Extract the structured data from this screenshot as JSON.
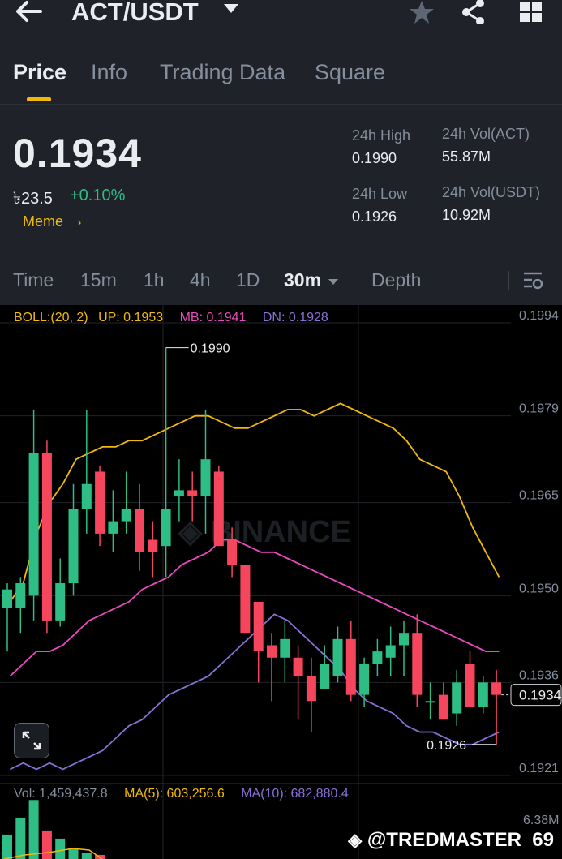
{
  "header": {
    "pair": "ACT/USDT"
  },
  "tabs": [
    {
      "label": "Price",
      "active": true
    },
    {
      "label": "Info",
      "active": false
    },
    {
      "label": "Trading Data",
      "active": false
    },
    {
      "label": "Square",
      "active": false
    }
  ],
  "ticker": {
    "last_price": "0.1934",
    "fiat_price": "৳23.5",
    "change": "+0.10%",
    "tag": "Meme",
    "high_label": "24h High",
    "high": "0.1990",
    "low_label": "24h Low",
    "low": "0.1926",
    "vol_base_label": "24h Vol(ACT)",
    "vol_base": "55.87M",
    "vol_quote_label": "24h Vol(USDT)",
    "vol_quote": "10.92M"
  },
  "timeframes": [
    "Time",
    "15m",
    "1h",
    "4h",
    "1D",
    "30m",
    "Depth"
  ],
  "selected_timeframe": "30m",
  "indicators": {
    "boll": "BOLL:(20, 2)",
    "up": "UP: 0.1953",
    "mb": "MB: 0.1941",
    "dn": "DN: 0.1928"
  },
  "volume_indicators": {
    "vol": "Vol: 1,459,437.8",
    "ma5": "MA(5): 603,256.6",
    "ma10": "MA(10): 682,880.4",
    "max": "6.38M"
  },
  "chart_data": {
    "type": "candlestick",
    "y_ticks": [
      "0.1994",
      "0.1979",
      "0.1965",
      "0.1950",
      "0.1936",
      "0.1921"
    ],
    "ylim": [
      0.1921,
      0.1994
    ],
    "current_price_label": "0.1934",
    "high_marker": "0.1990",
    "low_marker": "0.1926",
    "candles": [
      {
        "o": 0.1948,
        "h": 0.1952,
        "l": 0.1941,
        "c": 0.1951
      },
      {
        "o": 0.1948,
        "h": 0.1953,
        "l": 0.1944,
        "c": 0.1952
      },
      {
        "o": 0.195,
        "h": 0.198,
        "l": 0.1946,
        "c": 0.1973
      },
      {
        "o": 0.1973,
        "h": 0.1975,
        "l": 0.1944,
        "c": 0.1946
      },
      {
        "o": 0.1946,
        "h": 0.1956,
        "l": 0.1945,
        "c": 0.1952
      },
      {
        "o": 0.1952,
        "h": 0.1968,
        "l": 0.195,
        "c": 0.1964
      },
      {
        "o": 0.1964,
        "h": 0.198,
        "l": 0.196,
        "c": 0.1968
      },
      {
        "o": 0.197,
        "h": 0.1971,
        "l": 0.1958,
        "c": 0.196
      },
      {
        "o": 0.196,
        "h": 0.1967,
        "l": 0.1957,
        "c": 0.1962
      },
      {
        "o": 0.1962,
        "h": 0.197,
        "l": 0.196,
        "c": 0.1964
      },
      {
        "o": 0.1964,
        "h": 0.1968,
        "l": 0.1954,
        "c": 0.1957
      },
      {
        "o": 0.1959,
        "h": 0.1962,
        "l": 0.1953,
        "c": 0.1957
      },
      {
        "o": 0.1958,
        "h": 0.199,
        "l": 0.1953,
        "c": 0.1964
      },
      {
        "o": 0.1966,
        "h": 0.1972,
        "l": 0.1962,
        "c": 0.1967
      },
      {
        "o": 0.1967,
        "h": 0.197,
        "l": 0.1962,
        "c": 0.1966
      },
      {
        "o": 0.1966,
        "h": 0.198,
        "l": 0.196,
        "c": 0.1972
      },
      {
        "o": 0.197,
        "h": 0.1971,
        "l": 0.1958,
        "c": 0.1958
      },
      {
        "o": 0.1959,
        "h": 0.1961,
        "l": 0.1953,
        "c": 0.1955
      },
      {
        "o": 0.1955,
        "h": 0.1955,
        "l": 0.1944,
        "c": 0.1944
      },
      {
        "o": 0.1949,
        "h": 0.1949,
        "l": 0.1936,
        "c": 0.1941
      },
      {
        "o": 0.1942,
        "h": 0.1944,
        "l": 0.1933,
        "c": 0.194
      },
      {
        "o": 0.194,
        "h": 0.1946,
        "l": 0.1936,
        "c": 0.1943
      },
      {
        "o": 0.194,
        "h": 0.1942,
        "l": 0.193,
        "c": 0.1937
      },
      {
        "o": 0.1937,
        "h": 0.194,
        "l": 0.1928,
        "c": 0.1933
      },
      {
        "o": 0.1935,
        "h": 0.1942,
        "l": 0.1935,
        "c": 0.1939
      },
      {
        "o": 0.1937,
        "h": 0.1945,
        "l": 0.1936,
        "c": 0.1943
      },
      {
        "o": 0.1943,
        "h": 0.1946,
        "l": 0.1933,
        "c": 0.1934
      },
      {
        "o": 0.1934,
        "h": 0.194,
        "l": 0.1932,
        "c": 0.1939
      },
      {
        "o": 0.1939,
        "h": 0.1943,
        "l": 0.1937,
        "c": 0.1941
      },
      {
        "o": 0.194,
        "h": 0.1945,
        "l": 0.1937,
        "c": 0.1942
      },
      {
        "o": 0.1942,
        "h": 0.1946,
        "l": 0.1937,
        "c": 0.1944
      },
      {
        "o": 0.1944,
        "h": 0.1947,
        "l": 0.1932,
        "c": 0.1934
      },
      {
        "o": 0.1933,
        "h": 0.1936,
        "l": 0.193,
        "c": 0.1933
      },
      {
        "o": 0.1934,
        "h": 0.1936,
        "l": 0.193,
        "c": 0.193
      },
      {
        "o": 0.1931,
        "h": 0.1938,
        "l": 0.1929,
        "c": 0.1936
      },
      {
        "o": 0.1939,
        "h": 0.1941,
        "l": 0.1932,
        "c": 0.1932
      },
      {
        "o": 0.1932,
        "h": 0.1937,
        "l": 0.1931,
        "c": 0.1936
      },
      {
        "o": 0.1936,
        "h": 0.1938,
        "l": 0.1926,
        "c": 0.1934
      }
    ],
    "boll_up": [
      0.1949,
      0.1952,
      0.196,
      0.1965,
      0.1968,
      0.1972,
      0.1973,
      0.1974,
      0.1974,
      0.1975,
      0.1975,
      0.1976,
      0.1977,
      0.1978,
      0.1979,
      0.1979,
      0.1978,
      0.1977,
      0.1977,
      0.1978,
      0.1979,
      0.198,
      0.198,
      0.1979,
      0.198,
      0.1981,
      0.198,
      0.1979,
      0.1978,
      0.1977,
      0.1975,
      0.1972,
      0.1971,
      0.197,
      0.1966,
      0.1961,
      0.1957,
      0.1953
    ],
    "boll_mb": [
      0.1937,
      0.1939,
      0.1941,
      0.1941,
      0.1942,
      0.1944,
      0.1946,
      0.1947,
      0.1948,
      0.1949,
      0.1951,
      0.1952,
      0.1953,
      0.1955,
      0.1956,
      0.1957,
      0.1959,
      0.1959,
      0.1958,
      0.1957,
      0.1957,
      0.1956,
      0.1955,
      0.1954,
      0.1953,
      0.1952,
      0.1951,
      0.195,
      0.1949,
      0.1948,
      0.1947,
      0.1946,
      0.1945,
      0.1944,
      0.1943,
      0.1942,
      0.1941,
      0.1941
    ],
    "boll_dn": [
      0.1922,
      0.1923,
      0.1922,
      0.1923,
      0.1922,
      0.1923,
      0.1924,
      0.1925,
      0.1927,
      0.1929,
      0.193,
      0.1932,
      0.1934,
      0.1935,
      0.1936,
      0.1937,
      0.1939,
      0.1941,
      0.1943,
      0.1945,
      0.1947,
      0.1946,
      0.1944,
      0.1942,
      0.194,
      0.1938,
      0.1935,
      0.1933,
      0.1932,
      0.1931,
      0.1929,
      0.1928,
      0.1928,
      0.1927,
      0.1926,
      0.1926,
      0.1927,
      0.1928
    ],
    "volume_max": 6.38
  },
  "colors": {
    "up": "#2ebd85",
    "down": "#f6465d",
    "boll_up": "#f0b90b",
    "boll_mb": "#e84ac0",
    "boll_dn": "#8a6fd6",
    "accent": "#f0b90b"
  },
  "watermark": "@TREDMASTER_69"
}
